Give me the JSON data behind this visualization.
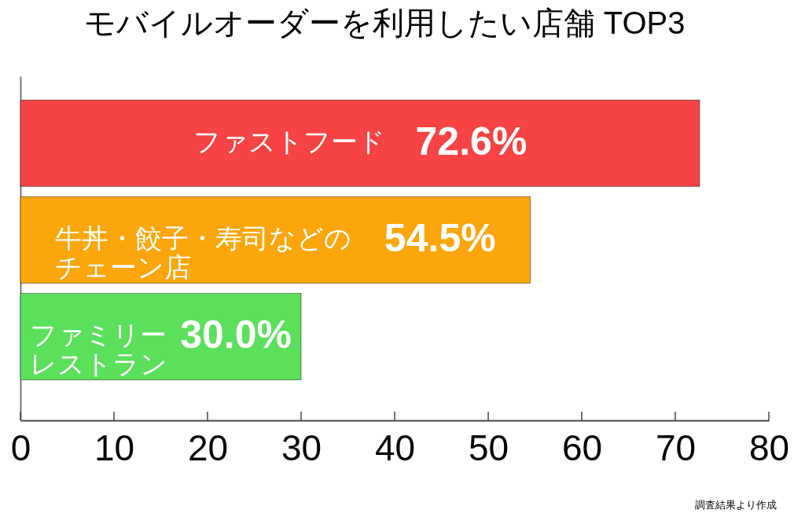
{
  "chart_data": {
    "type": "bar",
    "orientation": "horizontal",
    "title": "モバイルオーダーを利用したい店舗 TOP3",
    "categories": [
      "ファストフード",
      "牛丼・餃子・寿司などのチェーン店",
      "ファミリーレストラン"
    ],
    "values": [
      72.6,
      54.5,
      30.0
    ],
    "colors": [
      "#f74343",
      "#fca60b",
      "#5be05b"
    ],
    "value_labels": [
      "72.6%",
      "54.5%",
      "30.0%"
    ],
    "xlim": [
      0,
      80
    ],
    "xticks": [
      0,
      10,
      20,
      30,
      40,
      50,
      60,
      70,
      80
    ],
    "tick_labels": "x",
    "annotations": [
      "調査結果より作成"
    ]
  }
}
